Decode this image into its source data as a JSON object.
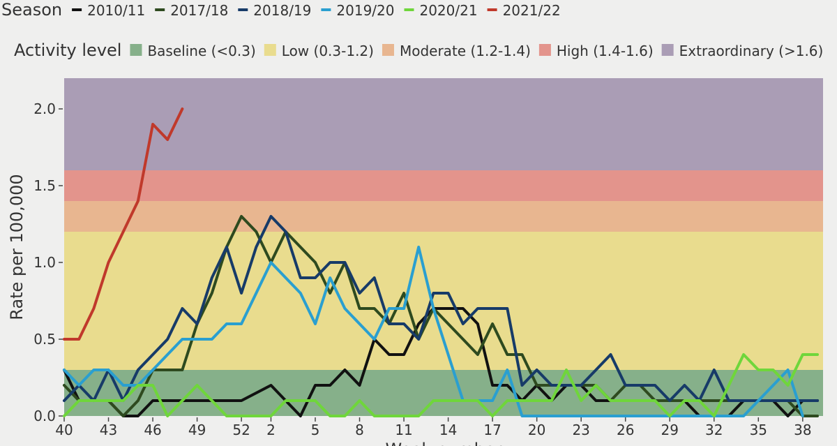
{
  "chart_data": {
    "type": "line",
    "y_label": "Rate per 100,000",
    "x_label": "Week number",
    "season_legend_title": "Season",
    "activity_legend_title": "Activity level",
    "categories": [
      "40",
      null,
      null,
      "43",
      null,
      null,
      "46",
      null,
      null,
      "49",
      null,
      null,
      "52",
      null,
      "2",
      null,
      null,
      "5",
      null,
      null,
      "8",
      null,
      null,
      "11",
      null,
      null,
      "14",
      null,
      null,
      "17",
      null,
      null,
      "20",
      null,
      null,
      "23",
      null,
      null,
      "26",
      null,
      null,
      "29",
      null,
      null,
      "32",
      null,
      null,
      "35",
      null,
      null,
      "38",
      null
    ],
    "ylim": [
      0,
      2.2
    ],
    "yticks": [
      {
        "value": 0,
        "label": "0.0"
      },
      {
        "value": 0.5,
        "label": "0.5"
      },
      {
        "value": 1,
        "label": "1.0"
      },
      {
        "value": 1.5,
        "label": "1.5"
      },
      {
        "value": 2,
        "label": "2.0"
      }
    ],
    "bands": [
      {
        "name": "Baseline (<0.3)",
        "color": "#86b08a",
        "from": 0,
        "to": 0.3
      },
      {
        "name": "Low (0.3-1.2)",
        "color": "#e9dc8e",
        "from": 0.3,
        "to": 1.2
      },
      {
        "name": "Moderate (1.2-1.4)",
        "color": "#e8b690",
        "from": 1.2,
        "to": 1.4
      },
      {
        "name": "High (1.4-1.6)",
        "color": "#e3948c",
        "from": 1.4,
        "to": 1.6
      },
      {
        "name": "Extraordinary (>1.6)",
        "color": "#aa9db5",
        "from": 1.6,
        "to": 2.2
      }
    ],
    "series": [
      {
        "name": "2010/11",
        "color": "#111111",
        "values": [
          0.3,
          0.1,
          0.1,
          0.1,
          0.0,
          0.0,
          0.1,
          0.1,
          0.1,
          0.1,
          0.1,
          0.1,
          0.1,
          0.15,
          0.2,
          0.1,
          0.0,
          0.2,
          0.2,
          0.3,
          0.2,
          0.5,
          0.4,
          0.4,
          0.6,
          0.7,
          0.7,
          0.7,
          0.6,
          0.2,
          0.2,
          0.1,
          0.2,
          0.1,
          0.2,
          0.2,
          0.1,
          0.1,
          0.1,
          0.1,
          0.1,
          0.1,
          0.1,
          0.0,
          0.0,
          0.0,
          0.1,
          0.1,
          0.1,
          0.0,
          0.1,
          0.1
        ]
      },
      {
        "name": "2017/18",
        "color": "#2e4a1f",
        "values": [
          0.2,
          0.1,
          0.1,
          0.1,
          0.0,
          0.1,
          0.3,
          0.3,
          0.3,
          0.6,
          0.8,
          1.1,
          1.3,
          1.2,
          1.0,
          1.2,
          1.1,
          1.0,
          0.8,
          1.0,
          0.7,
          0.7,
          0.6,
          0.8,
          0.5,
          0.7,
          0.6,
          0.5,
          0.4,
          0.6,
          0.4,
          0.4,
          0.2,
          0.2,
          0.2,
          0.2,
          0.2,
          0.1,
          0.2,
          0.2,
          0.1,
          0.1,
          0.1,
          0.1,
          0.1,
          0.1,
          0.1,
          0.1,
          0.1,
          0.1,
          0.0,
          0.0
        ]
      },
      {
        "name": "2018/19",
        "color": "#173b68",
        "values": [
          0.1,
          0.2,
          0.1,
          0.3,
          0.1,
          0.3,
          0.4,
          0.5,
          0.7,
          0.6,
          0.9,
          1.1,
          0.8,
          1.1,
          1.3,
          1.2,
          0.9,
          0.9,
          1.0,
          1.0,
          0.8,
          0.9,
          0.6,
          0.6,
          0.5,
          0.8,
          0.8,
          0.6,
          0.7,
          0.7,
          0.7,
          0.2,
          0.3,
          0.2,
          0.2,
          0.2,
          0.3,
          0.4,
          0.2,
          0.2,
          0.2,
          0.1,
          0.2,
          0.1,
          0.3,
          0.1,
          0.1,
          0.1,
          0.1,
          0.1,
          0.1,
          0.1
        ]
      },
      {
        "name": "2019/20",
        "color": "#2a9fd0",
        "values": [
          0.3,
          0.2,
          0.3,
          0.3,
          0.2,
          0.2,
          0.3,
          0.4,
          0.5,
          0.5,
          0.5,
          0.6,
          0.6,
          0.8,
          1.0,
          0.9,
          0.8,
          0.6,
          0.9,
          0.7,
          0.6,
          0.5,
          0.7,
          0.7,
          1.1,
          0.7,
          0.4,
          0.1,
          0.1,
          0.1,
          0.3,
          0.0,
          0.0,
          0.0,
          0.0,
          0.0,
          0.0,
          0.0,
          0.0,
          0.0,
          0.0,
          0.0,
          0.0,
          0.0,
          0.0,
          0.0,
          0.0,
          0.1,
          0.2,
          0.3,
          0.0,
          null
        ]
      },
      {
        "name": "2020/21",
        "color": "#6fd63b",
        "values": [
          0.0,
          0.1,
          0.1,
          0.1,
          0.1,
          0.2,
          0.2,
          0.0,
          0.1,
          0.2,
          0.1,
          0.0,
          0.0,
          0.0,
          0.0,
          0.1,
          0.1,
          0.1,
          0.0,
          0.0,
          0.1,
          0.0,
          0.0,
          0.0,
          0.0,
          0.1,
          0.1,
          0.1,
          0.1,
          0.0,
          0.1,
          0.1,
          0.1,
          0.1,
          0.3,
          0.1,
          0.2,
          0.1,
          0.1,
          0.1,
          0.1,
          0.0,
          0.1,
          0.1,
          0.0,
          0.2,
          0.4,
          0.3,
          0.3,
          0.2,
          0.4,
          0.4
        ]
      },
      {
        "name": "2021/22",
        "color": "#c0392b",
        "values": [
          0.5,
          0.5,
          0.7,
          1.0,
          1.2,
          1.4,
          1.9,
          1.8,
          2.0,
          null,
          null,
          null,
          null,
          null,
          null,
          null,
          null,
          null,
          null,
          null,
          null,
          null,
          null,
          null,
          null,
          null,
          null,
          null,
          null,
          null,
          null,
          null,
          null,
          null,
          null,
          null,
          null,
          null,
          null,
          null,
          null,
          null,
          null,
          null,
          null,
          null,
          null,
          null,
          null,
          null,
          null,
          null
        ]
      }
    ]
  }
}
